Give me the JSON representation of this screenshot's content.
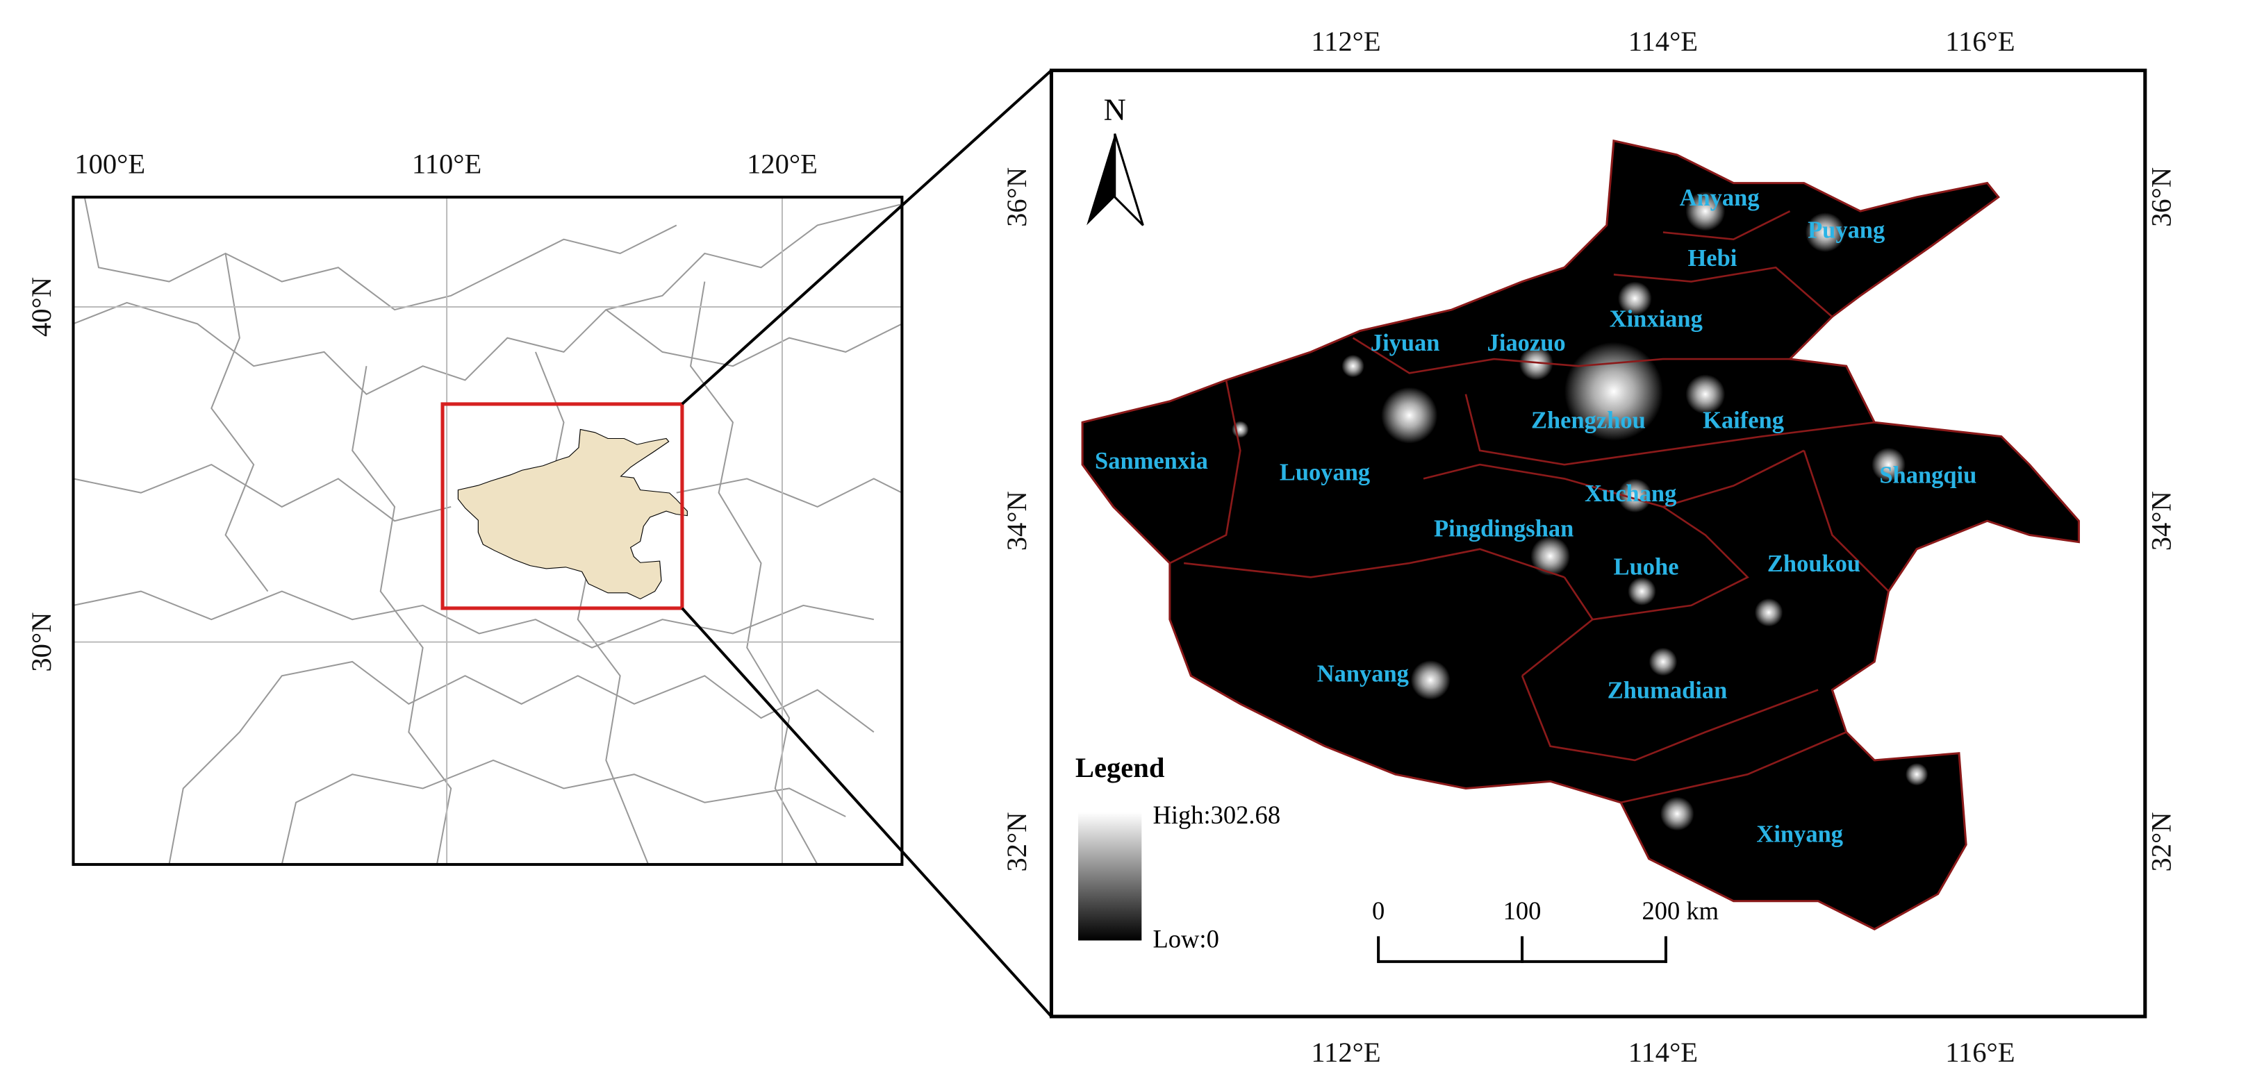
{
  "overview_map": {
    "lon_labels": [
      "100°E",
      "110°E",
      "120°E"
    ],
    "lat_labels": [
      "40°N",
      "30°N"
    ]
  },
  "detail_map": {
    "lon_labels_top": [
      "112°E",
      "114°E",
      "116°E"
    ],
    "lon_labels_bottom": [
      "112°E",
      "114°E",
      "116°E"
    ],
    "lat_labels_left": [
      "36°N",
      "34°N",
      "32°N"
    ],
    "lat_labels_right": [
      "36°N",
      "34°N",
      "32°N"
    ],
    "north": "N",
    "cities": [
      "Anyang",
      "Puyang",
      "Hebi",
      "Xinxiang",
      "Jiyuan",
      "Jiaozuo",
      "Zhengzhou",
      "Kaifeng",
      "Sanmenxia",
      "Luoyang",
      "Shangqiu",
      "Xuchang",
      "Pingdingshan",
      "Luohe",
      "Zhoukou",
      "Nanyang",
      "Zhumadian",
      "Xinyang"
    ],
    "legend": {
      "title": "Legend",
      "high": "High:302.68",
      "low": "Low:0"
    },
    "scale_bar": [
      "0",
      "100",
      "200 km"
    ]
  }
}
